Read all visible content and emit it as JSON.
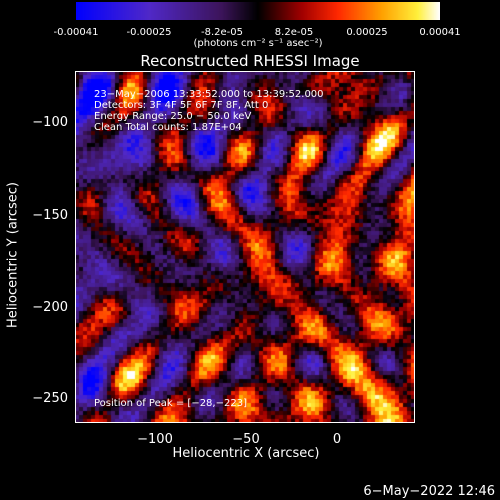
{
  "colorbar": {
    "ticks": [
      "-0.00041",
      "-0.00025",
      "-8.2e-05",
      "8.2e-05",
      "0.00025",
      "0.00041"
    ],
    "unit": "(photons cm⁻² s⁻¹ asec⁻²)"
  },
  "chart_data": {
    "type": "heatmap",
    "title": "Reconstructed RHESSI Image",
    "xlabel": "Heliocentric X (arcsec)",
    "ylabel": "Heliocentric Y (arcsec)",
    "x_ticks": [
      "−100",
      "−50",
      "0"
    ],
    "y_ticks": [
      "−100",
      "−150",
      "−200",
      "−250"
    ],
    "xlim": [
      -145,
      40
    ],
    "ylim": [
      -265,
      -73
    ],
    "color_range": [
      -0.00041,
      0.00041
    ],
    "annotations": [
      "23−May−2006 13:33:52.000 to 13:39:52.000",
      "Detectors: 3F 4F 5F 6F 7F 8F, Att 0",
      "Energy Range: 25.0 − 50.0 keV",
      "Clean     Total counts: 1.87E+04"
    ],
    "peak_label": "Position of Peak = [−28,−223]"
  },
  "footer": {
    "timestamp": "6−May−2022 12:46"
  }
}
